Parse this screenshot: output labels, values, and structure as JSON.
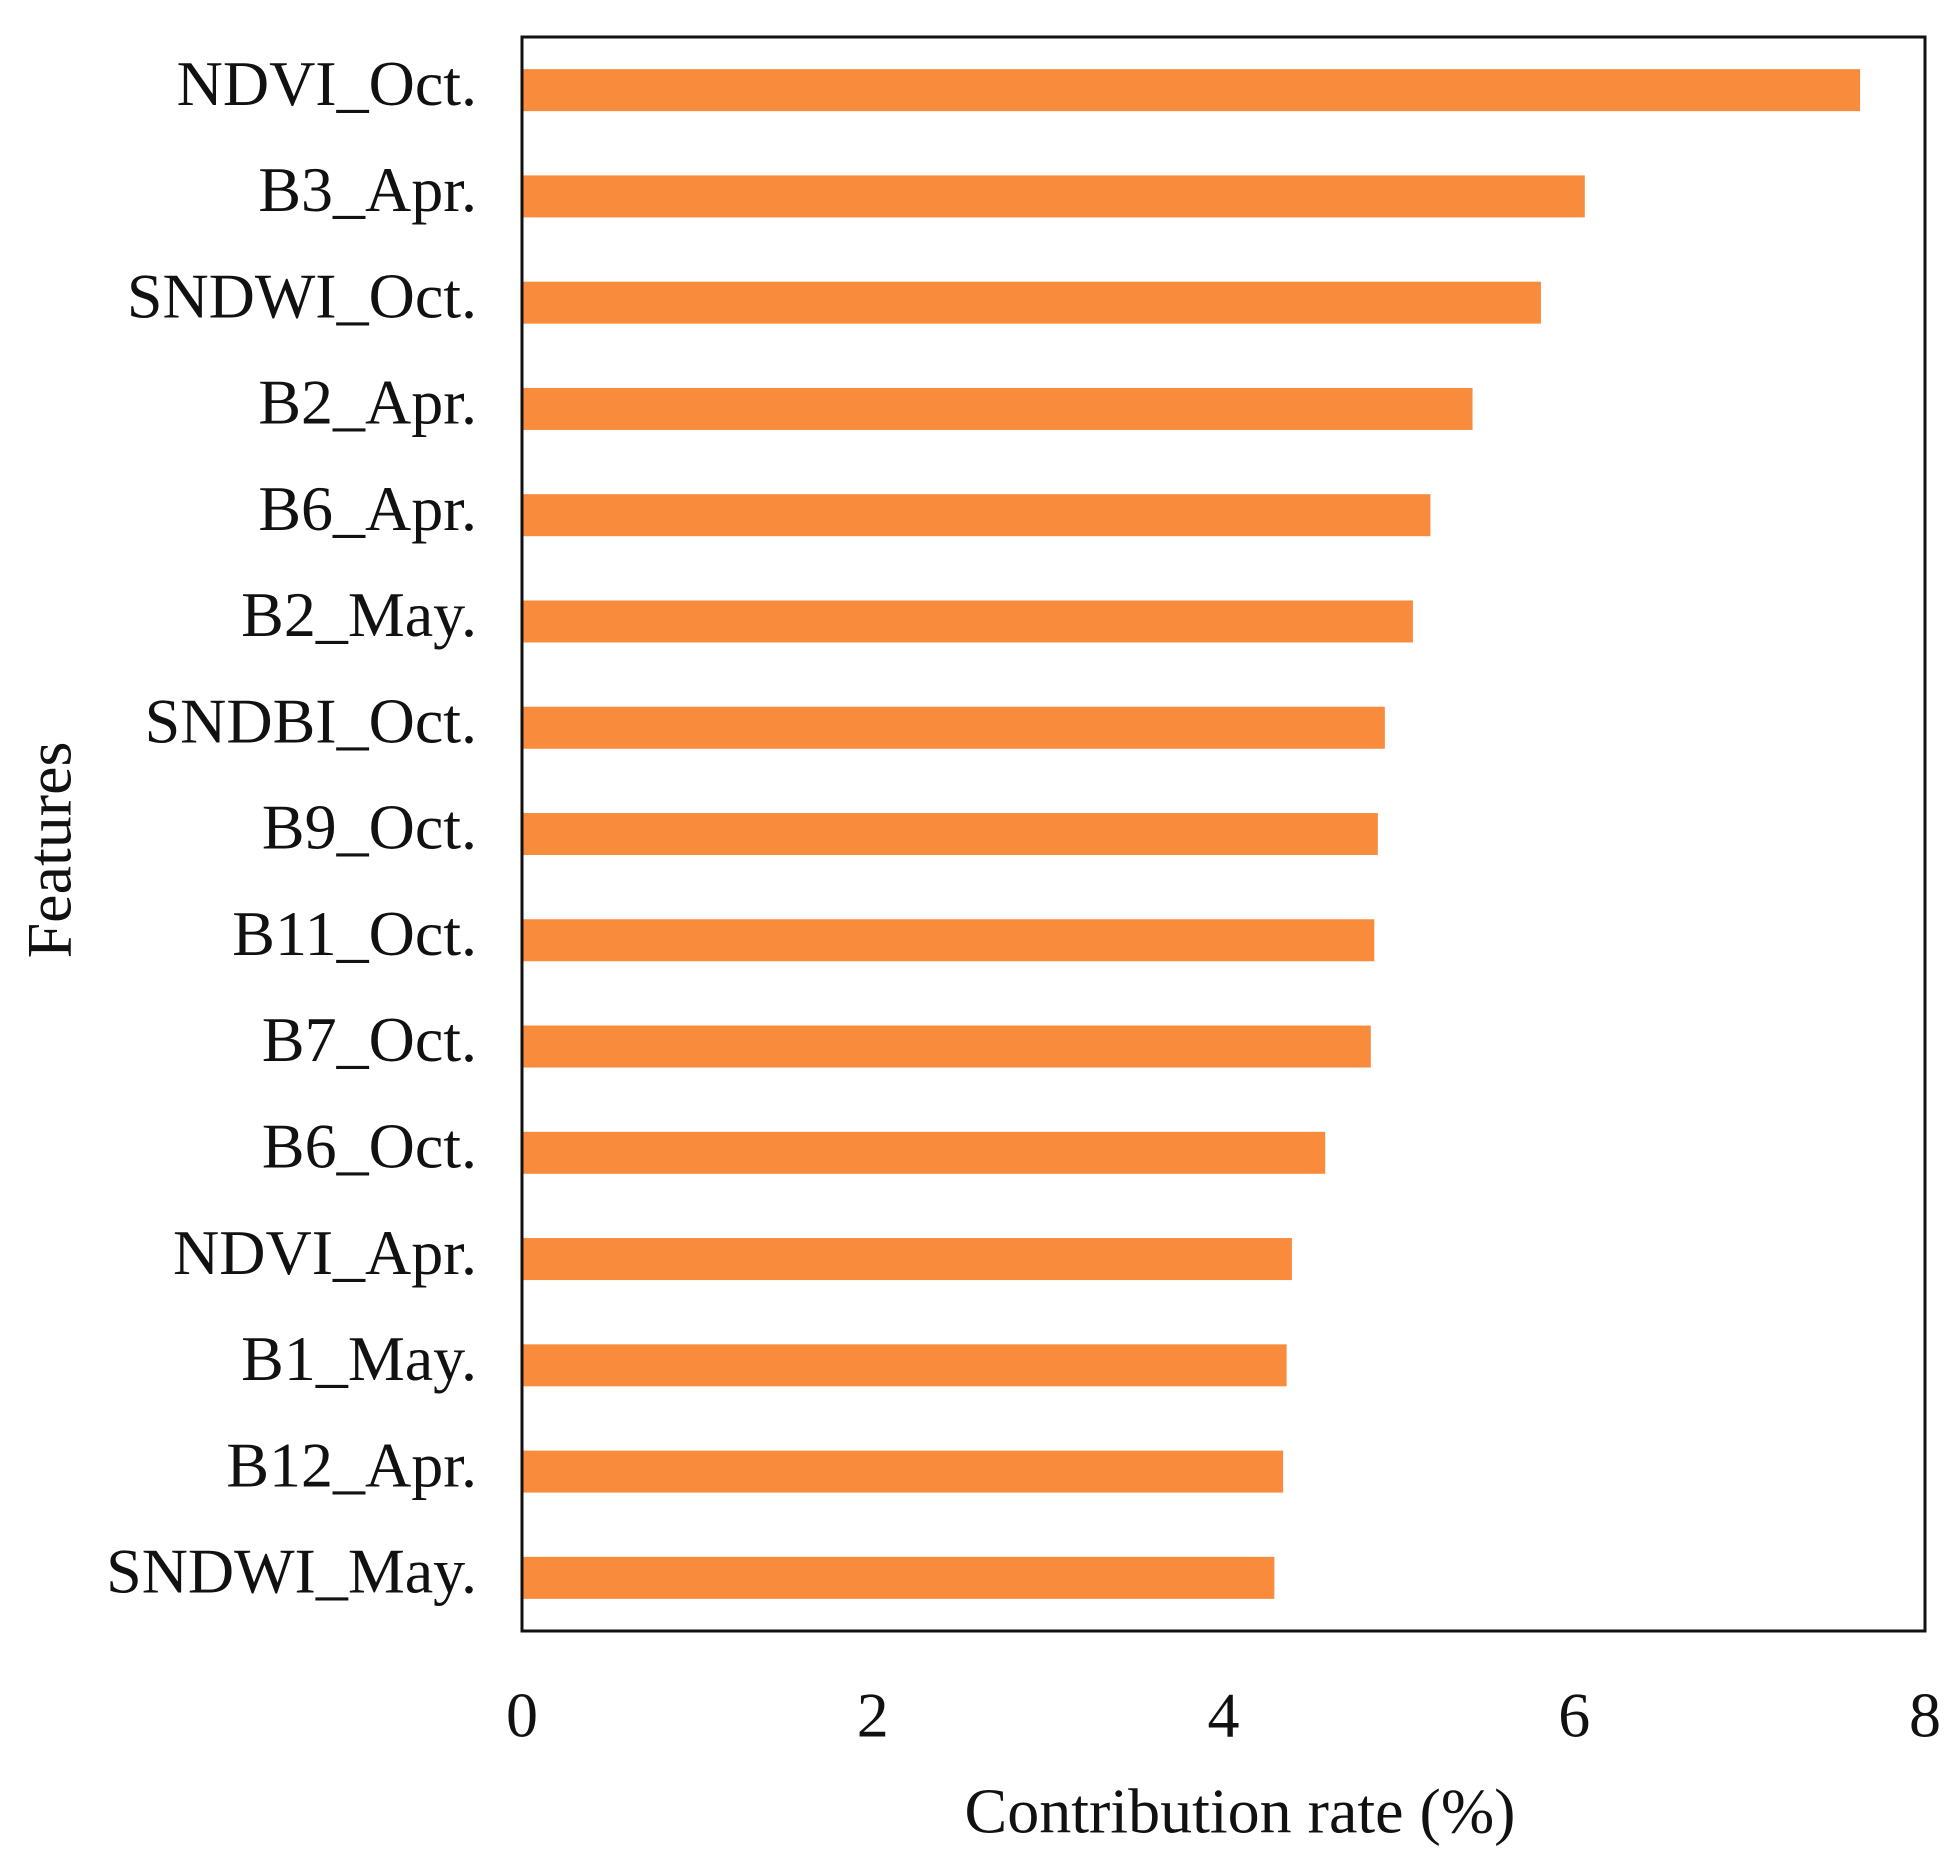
{
  "chart_data": {
    "type": "barh",
    "xlabel": "Contribution rate (%)",
    "ylabel": "Features",
    "categories": [
      "NDVI_Oct.",
      "B3_Apr.",
      "SNDWI_Oct.",
      "B2_Apr.",
      "B6_Apr.",
      "B2_May.",
      "SNDBI_Oct.",
      "B9_Oct.",
      "B11_Oct.",
      "B7_Oct.",
      "B6_Oct.",
      "NDVI_Apr.",
      "B1_May.",
      "B12_Apr.",
      "SNDWI_May."
    ],
    "values": [
      7.63,
      6.06,
      5.81,
      5.42,
      5.18,
      5.08,
      4.92,
      4.88,
      4.86,
      4.84,
      4.58,
      4.39,
      4.36,
      4.34,
      4.29
    ],
    "color": "#f98b3c",
    "xlim": [
      0,
      8
    ],
    "xticks": [
      0,
      2,
      4,
      6,
      8
    ],
    "grid": false
  }
}
